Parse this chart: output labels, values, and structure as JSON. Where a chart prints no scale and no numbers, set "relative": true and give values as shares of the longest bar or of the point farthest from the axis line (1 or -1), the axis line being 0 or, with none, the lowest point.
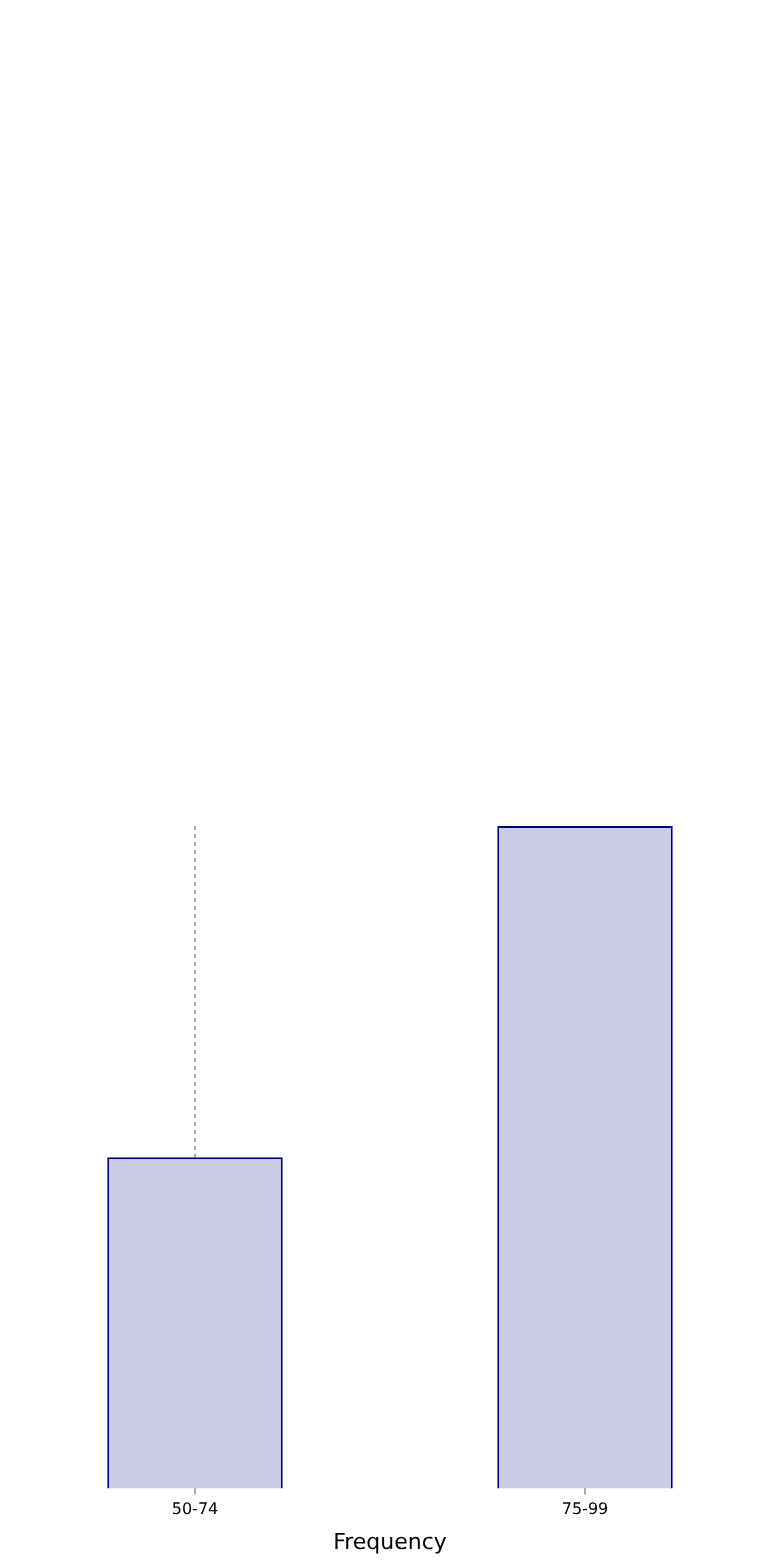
{
  "chart_data": {
    "type": "bar",
    "xlabel": "Frequency",
    "categories": [
      "50-74",
      "75-99"
    ],
    "values": [
      0.5,
      1
    ],
    "color": "#ccccE4",
    "relative": true,
    "grid": "x"
  }
}
